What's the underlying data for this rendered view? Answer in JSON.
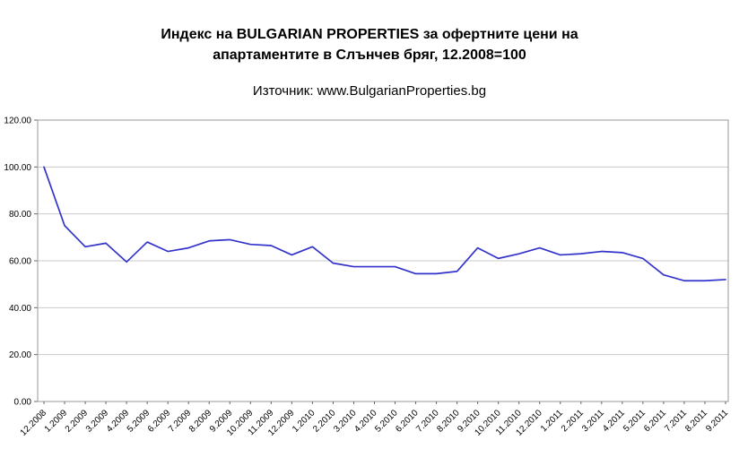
{
  "header": {
    "title_line1": "Индекс на BULGARIAN PROPERTIES за офертните цени на",
    "title_line2": "апартаментите в Слънчев бряг, 12.2008=100",
    "source": "Източник: www.BulgarianProperties.bg"
  },
  "chart_data": {
    "type": "line",
    "title": "Индекс на BULGARIAN PROPERTIES за офертните цени на апартаментите в Слънчев бряг, 12.2008=100",
    "subtitle": "Източник: www.BulgarianProperties.bg",
    "xlabel": "",
    "ylabel": "",
    "legend": "none",
    "grid": true,
    "ylim": [
      0,
      120
    ],
    "ytick_step": 20,
    "ytick_labels": [
      "0.00",
      "20.00",
      "40.00",
      "60.00",
      "80.00",
      "100.00",
      "120.00"
    ],
    "categories": [
      "12.2008",
      "1.2009",
      "2.2009",
      "3.2009",
      "4.2009",
      "5.2009",
      "6.2009",
      "7.2009",
      "8.2009",
      "9.2009",
      "10.2009",
      "11.2009",
      "12.2009",
      "1.2010",
      "2.2010",
      "3.2010",
      "4.2010",
      "5.2010",
      "6.2010",
      "7.2010",
      "8.2010",
      "9.2010",
      "10.2010",
      "11.2010",
      "12.2010",
      "1.2011",
      "2.2011",
      "3.2011",
      "4.2011",
      "5.2011",
      "6.2011",
      "7.2011",
      "8.2011",
      "9.2011"
    ],
    "values": [
      100,
      75,
      66,
      67.5,
      59.5,
      68,
      64,
      65.5,
      68.5,
      69,
      67,
      66.5,
      62.5,
      66,
      59,
      57.5,
      57.5,
      57.5,
      54.5,
      54.5,
      55.5,
      65.5,
      61,
      63,
      65.5,
      62.5,
      63,
      64,
      63.5,
      61,
      54,
      51.5,
      51.5,
      52
    ],
    "line_color": "#3333cc",
    "gridline_color": "#c9c9c9",
    "plot_border_color": "#999999",
    "tick_color": "#666666"
  }
}
